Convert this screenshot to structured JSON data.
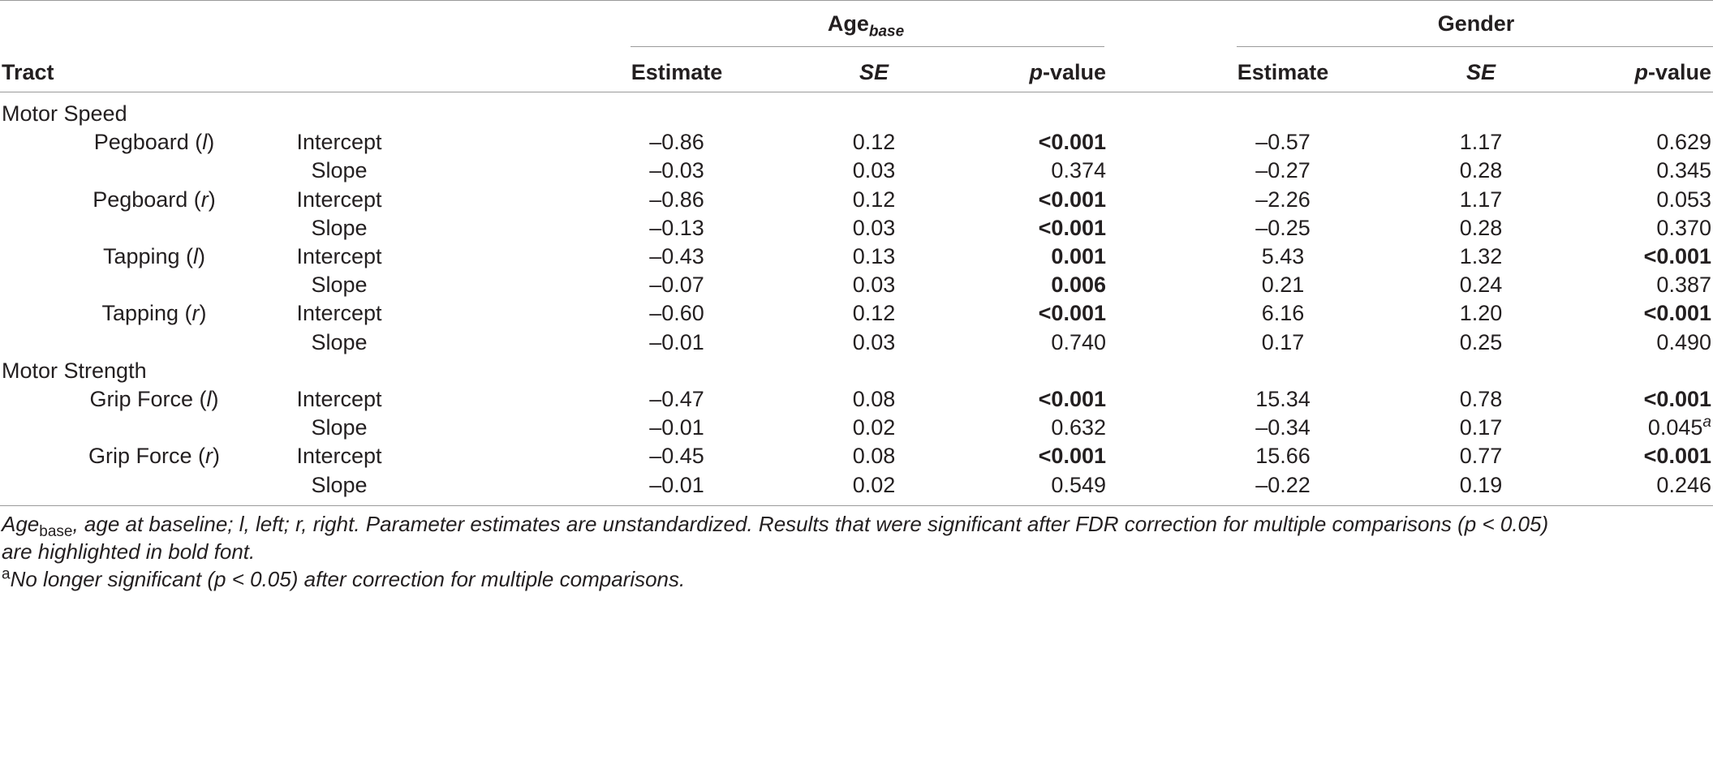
{
  "header": {
    "group1": {
      "label": "Age",
      "sub": "base"
    },
    "group2": {
      "label": "Gender"
    },
    "tract_label": "Tract",
    "columns": [
      "Estimate",
      "SE",
      "p-value",
      "Estimate",
      "SE",
      "p-value"
    ]
  },
  "sections": [
    {
      "title": "Motor Speed",
      "measures": [
        {
          "name": "Pegboard",
          "side": "l",
          "rows": [
            {
              "param": "Intercept",
              "cells": [
                "–0.86",
                "0.12",
                "<0.001",
                "–0.57",
                "1.17",
                "0.629"
              ],
              "bold": [
                false,
                false,
                true,
                false,
                false,
                false
              ]
            },
            {
              "param": "Slope",
              "cells": [
                "–0.03",
                "0.03",
                "0.374",
                "–0.27",
                "0.28",
                "0.345"
              ],
              "bold": [
                false,
                false,
                false,
                false,
                false,
                false
              ]
            }
          ]
        },
        {
          "name": "Pegboard",
          "side": "r",
          "rows": [
            {
              "param": "Intercept",
              "cells": [
                "–0.86",
                "0.12",
                "<0.001",
                "–2.26",
                "1.17",
                "0.053"
              ],
              "bold": [
                false,
                false,
                true,
                false,
                false,
                false
              ]
            },
            {
              "param": "Slope",
              "cells": [
                "–0.13",
                "0.03",
                "<0.001",
                "–0.25",
                "0.28",
                "0.370"
              ],
              "bold": [
                false,
                false,
                true,
                false,
                false,
                false
              ]
            }
          ]
        },
        {
          "name": "Tapping",
          "side": "l",
          "rows": [
            {
              "param": "Intercept",
              "cells": [
                "–0.43",
                "0.13",
                "0.001",
                "5.43",
                "1.32",
                "<0.001"
              ],
              "bold": [
                false,
                false,
                true,
                false,
                false,
                true
              ]
            },
            {
              "param": "Slope",
              "cells": [
                "–0.07",
                "0.03",
                "0.006",
                "0.21",
                "0.24",
                "0.387"
              ],
              "bold": [
                false,
                false,
                true,
                false,
                false,
                false
              ]
            }
          ]
        },
        {
          "name": "Tapping",
          "side": "r",
          "rows": [
            {
              "param": "Intercept",
              "cells": [
                "–0.60",
                "0.12",
                "<0.001",
                "6.16",
                "1.20",
                "<0.001"
              ],
              "bold": [
                false,
                false,
                true,
                false,
                false,
                true
              ]
            },
            {
              "param": "Slope",
              "cells": [
                "–0.01",
                "0.03",
                "0.740",
                "0.17",
                "0.25",
                "0.490"
              ],
              "bold": [
                false,
                false,
                false,
                false,
                false,
                false
              ]
            }
          ]
        }
      ]
    },
    {
      "title": "Motor Strength",
      "measures": [
        {
          "name": "Grip Force",
          "side": "l",
          "rows": [
            {
              "param": "Intercept",
              "cells": [
                "–0.47",
                "0.08",
                "<0.001",
                "15.34",
                "0.78",
                "<0.001"
              ],
              "bold": [
                false,
                false,
                true,
                false,
                false,
                true
              ]
            },
            {
              "param": "Slope",
              "cells": [
                "–0.01",
                "0.02",
                "0.632",
                "–0.34",
                "0.17",
                "0.045"
              ],
              "bold": [
                false,
                false,
                false,
                false,
                false,
                false
              ],
              "sup": [
                null,
                null,
                null,
                null,
                null,
                "a"
              ]
            }
          ]
        },
        {
          "name": "Grip Force",
          "side": "r",
          "rows": [
            {
              "param": "Intercept",
              "cells": [
                "–0.45",
                "0.08",
                "<0.001",
                "15.66",
                "0.77",
                "<0.001"
              ],
              "bold": [
                false,
                false,
                true,
                false,
                false,
                true
              ]
            },
            {
              "param": "Slope",
              "cells": [
                "–0.01",
                "0.02",
                "0.549",
                "–0.22",
                "0.19",
                "0.246"
              ],
              "bold": [
                false,
                false,
                false,
                false,
                false,
                false
              ]
            }
          ]
        }
      ]
    }
  ],
  "footnotes": {
    "line1_prefix": "Age",
    "line1_sub": "base",
    "line1_rest": ", age at baseline; l, left; r, right. Parameter estimates are unstandardized. Results that were significant after FDR correction for multiple comparisons (p < 0.05)",
    "line2": "are highlighted in bold font.",
    "note_marker": "a",
    "note_text": "No longer significant (p < 0.05) after correction for multiple comparisons."
  }
}
